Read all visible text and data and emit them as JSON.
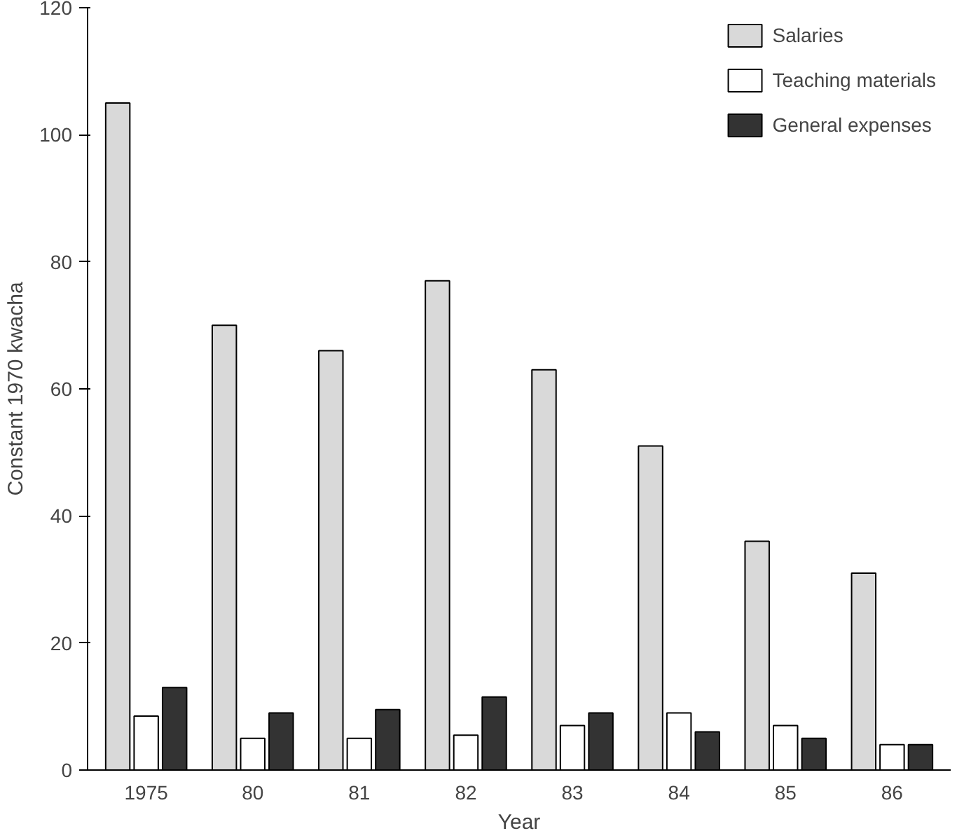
{
  "chart_data": {
    "type": "bar",
    "xlabel": "Year",
    "ylabel": "Constant 1970 kwacha",
    "categories": [
      "1975",
      "80",
      "81",
      "82",
      "83",
      "84",
      "85",
      "86"
    ],
    "series": [
      {
        "name": "Salaries",
        "color": "#d9d9d9",
        "values": [
          105,
          70,
          66,
          77,
          63,
          51,
          36,
          31
        ]
      },
      {
        "name": "Teaching materials",
        "color": "#ffffff",
        "values": [
          8.5,
          5,
          5,
          5.5,
          7,
          9,
          7,
          4
        ]
      },
      {
        "name": "General expenses",
        "color": "#333333",
        "values": [
          13,
          9,
          9.5,
          11.5,
          9,
          6,
          5,
          4
        ]
      }
    ],
    "ylim": [
      0,
      120
    ],
    "yticks": [
      0,
      20,
      40,
      60,
      80,
      100,
      120
    ],
    "grid": false,
    "legend": "top right"
  }
}
